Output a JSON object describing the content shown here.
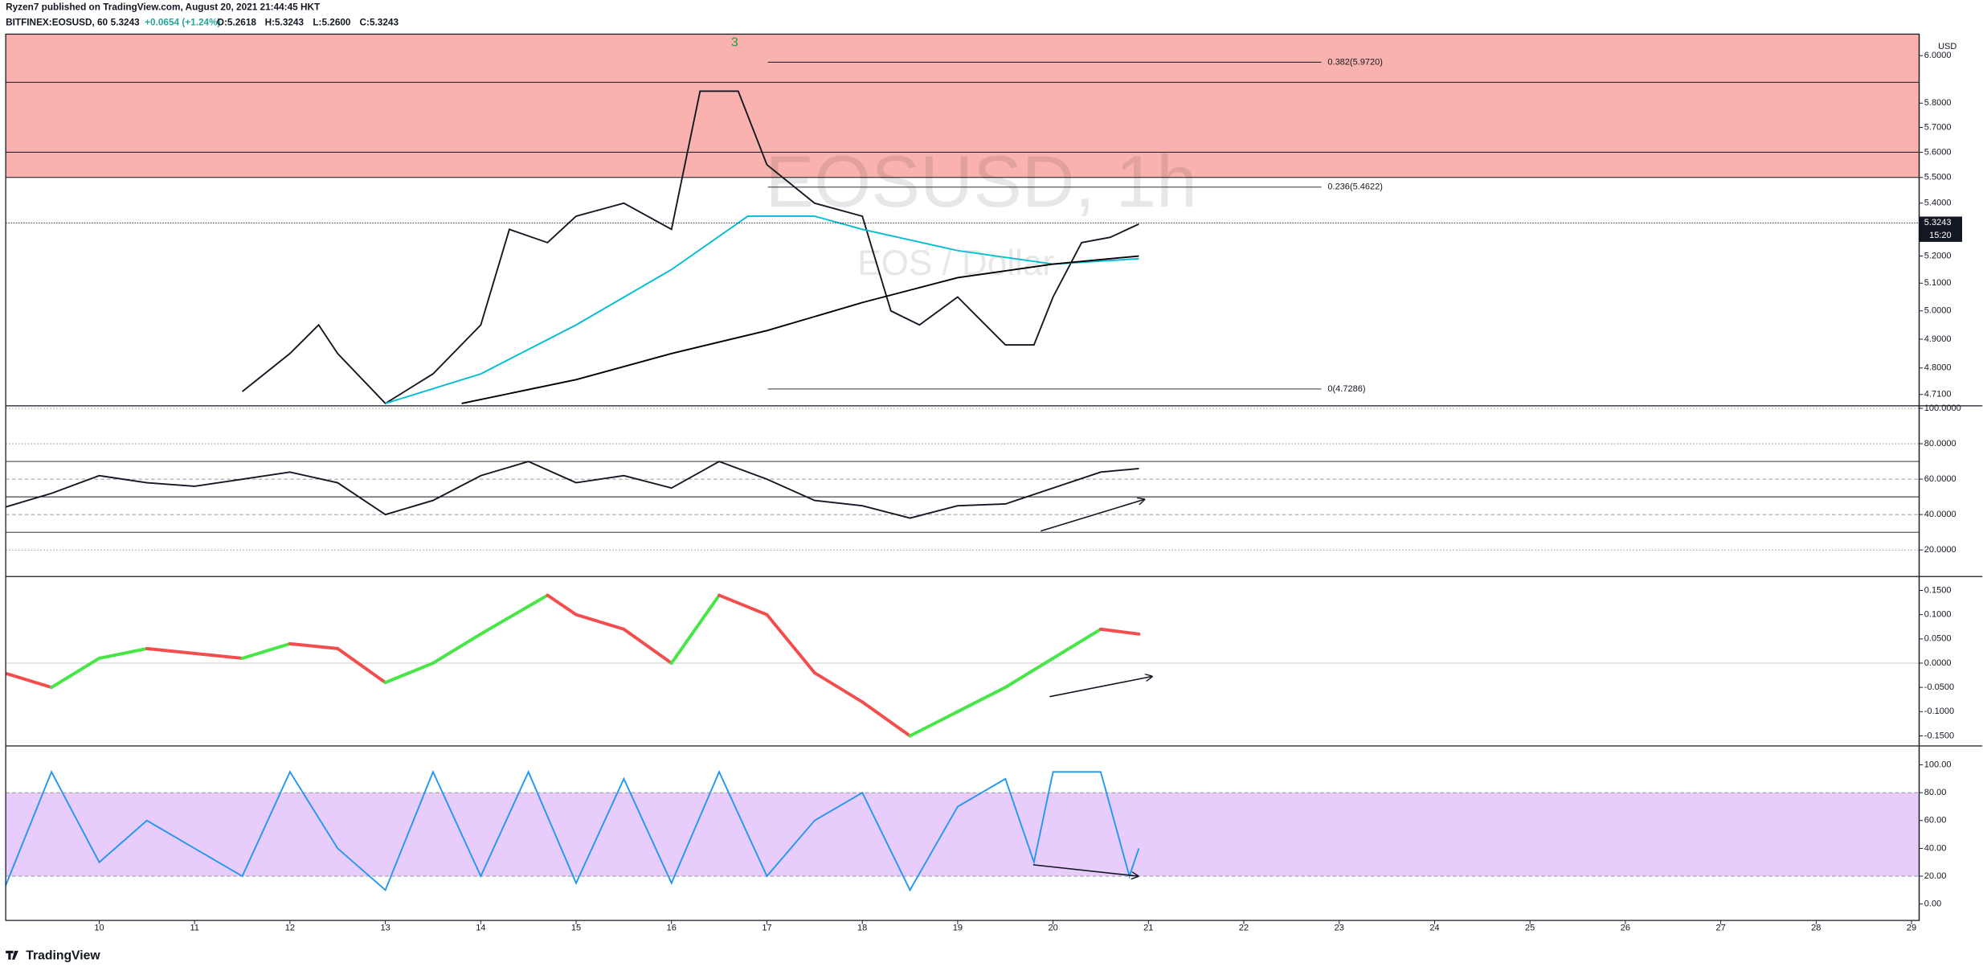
{
  "header": {
    "publisher": "Ryzen7 published on TradingView.com, August 20, 2021 21:44:45 HKT",
    "symbol": "BITFINEX:EOSUSD, 60",
    "last": "5.3243",
    "change": "+0.0654 (+1.24%)",
    "open": "O:5.2618",
    "high": "H:5.3243",
    "low": "L:5.2600",
    "close": "C:5.3243"
  },
  "footer": {
    "logo": "TradingView"
  },
  "chart_data": [
    {
      "type": "line",
      "watermark": "EOSUSD, 1h",
      "subtitle": "EOS / Dollar",
      "currency": "USD",
      "annotation": "3",
      "log": true,
      "ylim": [
        4.672,
        6.093
      ],
      "yticks": [
        {
          "value": 4.71,
          "label": "4.7100"
        },
        {
          "value": 4.8,
          "label": "4.8000"
        },
        {
          "value": 4.9,
          "label": "4.9000"
        },
        {
          "value": 5.0,
          "label": "5.0000"
        },
        {
          "value": 5.1,
          "label": "5.1000"
        },
        {
          "value": 5.2,
          "label": "5.2000"
        },
        {
          "value": 5.4,
          "label": "5.4000"
        },
        {
          "value": 5.5,
          "label": "5.5000"
        },
        {
          "value": 5.6,
          "label": "5.6000"
        },
        {
          "value": 5.7,
          "label": "5.7000"
        },
        {
          "value": 5.8,
          "label": "5.8000"
        },
        {
          "value": 6.0,
          "label": "6.0000"
        }
      ],
      "last_price": {
        "value": 5.3243,
        "label": "5.3243"
      },
      "countdown": "15:20",
      "zone_color": "#f9b2ae",
      "zone_lines": [
        5.5,
        5.6,
        5.887
      ],
      "fib": [
        {
          "value": 5.972,
          "label": "0.382(5.9720)"
        },
        {
          "value": 5.4622,
          "label": "0.236(5.4622)"
        },
        {
          "value": 4.7286,
          "label": "0(4.7286)"
        }
      ],
      "series": [
        {
          "color": "#131722",
          "x": [
            11.5,
            12.0,
            12.3,
            12.5,
            13.0,
            13.5,
            14.0,
            14.3,
            14.7,
            15.0,
            15.5,
            16.0,
            16.3,
            16.7,
            17.0,
            17.5,
            18.0,
            18.3,
            18.6,
            19.0,
            19.5,
            19.8,
            20.0,
            20.3,
            20.6,
            20.9
          ],
          "values": [
            4.72,
            4.85,
            4.95,
            4.85,
            4.68,
            4.78,
            4.95,
            5.3,
            5.25,
            5.35,
            5.4,
            5.3,
            5.85,
            5.85,
            5.55,
            5.4,
            5.35,
            5.0,
            4.95,
            5.05,
            4.88,
            4.88,
            5.05,
            5.25,
            5.27,
            5.32
          ]
        },
        {
          "color": "#00bcd4",
          "x": [
            13.0,
            14.0,
            15.0,
            16.0,
            16.8,
            17.5,
            18.0,
            19.0,
            20.0,
            20.9
          ],
          "values": [
            4.68,
            4.78,
            4.95,
            5.15,
            5.35,
            5.35,
            5.3,
            5.22,
            5.17,
            5.19
          ]
        },
        {
          "color": "#000000",
          "x": [
            13.8,
            15.0,
            16.0,
            17.0,
            18.0,
            19.0,
            20.0,
            20.9
          ],
          "values": [
            4.68,
            4.76,
            4.85,
            4.93,
            5.03,
            5.12,
            5.17,
            5.2
          ]
        }
      ]
    },
    {
      "type": "line",
      "ylim": [
        5,
        101.4
      ],
      "yticks": [
        {
          "value": 20,
          "label": "20.0000"
        },
        {
          "value": 40,
          "label": "40.0000"
        },
        {
          "value": 60,
          "label": "60.0000"
        },
        {
          "value": 80,
          "label": "80.0000"
        },
        {
          "value": 100,
          "label": "100.0000"
        }
      ],
      "levels": [
        30,
        50,
        70
      ],
      "series": [
        {
          "color": "#131722",
          "x": [
            9.0,
            9.5,
            10.0,
            10.5,
            11.0,
            11.5,
            12.0,
            12.5,
            13.0,
            13.5,
            14.0,
            14.5,
            15.0,
            15.5,
            16.0,
            16.5,
            17.0,
            17.5,
            18.0,
            18.5,
            19.0,
            19.5,
            20.0,
            20.5,
            20.9
          ],
          "values": [
            44,
            52,
            62,
            58,
            56,
            60,
            64,
            58,
            40,
            48,
            62,
            70,
            58,
            62,
            55,
            70,
            60,
            48,
            45,
            38,
            45,
            46,
            55,
            64,
            66
          ]
        }
      ]
    },
    {
      "type": "macd",
      "ylim": [
        -0.1708,
        0.1786
      ],
      "yticks": [
        {
          "value": 0.15,
          "label": "0.1500"
        },
        {
          "value": 0.1,
          "label": "0.1000"
        },
        {
          "value": 0.05,
          "label": "0.0500"
        },
        {
          "value": 0,
          "label": "0.0000"
        },
        {
          "value": -0.05,
          "label": "-0.0500"
        },
        {
          "value": -0.1,
          "label": "-0.1000"
        },
        {
          "value": -0.15,
          "label": "-0.1500"
        }
      ],
      "up_color": "#45e645",
      "down_color": "#f44d4d",
      "x": [
        9.0,
        9.5,
        10.0,
        10.5,
        11.0,
        11.5,
        12.0,
        12.5,
        13.0,
        13.5,
        14.0,
        14.7,
        15.0,
        15.5,
        16.0,
        16.5,
        17.0,
        17.5,
        18.0,
        18.5,
        19.0,
        19.5,
        20.0,
        20.5,
        20.9
      ],
      "values": [
        -0.02,
        -0.05,
        0.01,
        0.03,
        0.02,
        0.01,
        0.04,
        0.03,
        -0.04,
        0.0,
        0.06,
        0.14,
        0.1,
        0.07,
        0.0,
        0.14,
        0.1,
        -0.02,
        -0.08,
        -0.15,
        -0.1,
        -0.05,
        0.01,
        0.07,
        0.06
      ]
    },
    {
      "type": "line",
      "ylim": [
        -11.8,
        113.6
      ],
      "yticks": [
        {
          "value": 0,
          "label": "0.00"
        },
        {
          "value": 20,
          "label": "20.00"
        },
        {
          "value": 40,
          "label": "40.00"
        },
        {
          "value": 60,
          "label": "60.00"
        },
        {
          "value": 80,
          "label": "80.00"
        },
        {
          "value": 100,
          "label": "100.00"
        }
      ],
      "band": [
        20,
        80
      ],
      "band_color": "#e8cdfc",
      "xlim": [
        9.02,
        29.08
      ],
      "xticks": [
        10,
        11,
        12,
        13,
        14,
        15,
        16,
        17,
        18,
        19,
        20,
        21,
        22,
        23,
        24,
        25,
        26,
        27,
        28,
        29
      ],
      "series": [
        {
          "color": "#2196f3",
          "x": [
            9.0,
            9.5,
            10.0,
            10.5,
            11.0,
            11.5,
            12.0,
            12.5,
            13.0,
            13.5,
            14.0,
            14.5,
            15.0,
            15.5,
            16.0,
            16.5,
            17.0,
            17.5,
            18.0,
            18.5,
            19.0,
            19.5,
            19.8,
            20.0,
            20.5,
            20.8,
            20.9
          ],
          "values": [
            10,
            95,
            30,
            60,
            40,
            20,
            95,
            40,
            10,
            95,
            20,
            95,
            15,
            90,
            15,
            95,
            20,
            60,
            80,
            10,
            70,
            90,
            30,
            95,
            95,
            20,
            40
          ]
        }
      ]
    }
  ]
}
